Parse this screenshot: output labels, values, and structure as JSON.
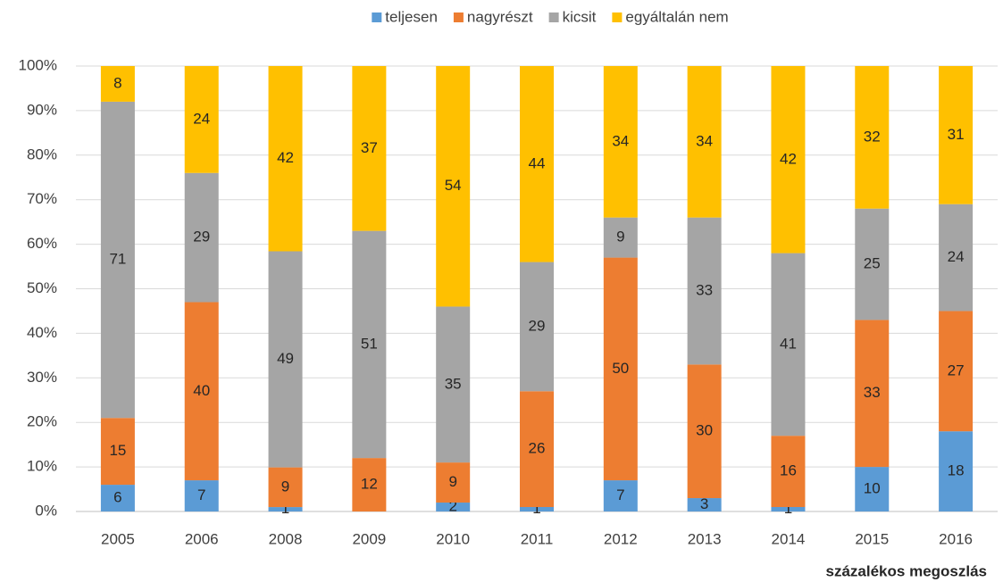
{
  "chart_data": {
    "type": "bar",
    "stack": "percent",
    "categories": [
      "2005",
      "2006",
      "2008",
      "2009",
      "2010",
      "2011",
      "2012",
      "2013",
      "2014",
      "2015",
      "2016"
    ],
    "series": [
      {
        "name": "teljesen",
        "color": "#5b9bd5",
        "values": [
          6,
          7,
          1,
          0,
          2,
          1,
          7,
          3,
          1,
          10,
          18
        ]
      },
      {
        "name": "nagyrészt",
        "color": "#ed7d31",
        "values": [
          15,
          40,
          9,
          12,
          9,
          26,
          50,
          30,
          16,
          33,
          27
        ]
      },
      {
        "name": "kicsit",
        "color": "#a5a5a5",
        "values": [
          71,
          29,
          49,
          51,
          35,
          29,
          9,
          33,
          41,
          25,
          24
        ]
      },
      {
        "name": "egyáltalán nem",
        "color": "#ffc000",
        "values": [
          8,
          24,
          42,
          37,
          54,
          44,
          34,
          34,
          42,
          32,
          31
        ]
      }
    ],
    "ylim": [
      0,
      100
    ],
    "yticks": [
      {
        "value": 0,
        "label": "0%"
      },
      {
        "value": 10,
        "label": "10%"
      },
      {
        "value": 20,
        "label": "20%"
      },
      {
        "value": 30,
        "label": "30%"
      },
      {
        "value": 40,
        "label": "40%"
      },
      {
        "value": 50,
        "label": "50%"
      },
      {
        "value": 60,
        "label": "60%"
      },
      {
        "value": 70,
        "label": "70%"
      },
      {
        "value": 80,
        "label": "80%"
      },
      {
        "value": 90,
        "label": "90%"
      },
      {
        "value": 100,
        "label": "100%"
      }
    ],
    "xlabel": "százalékos megoszlás",
    "grid": true,
    "legend": "top"
  }
}
